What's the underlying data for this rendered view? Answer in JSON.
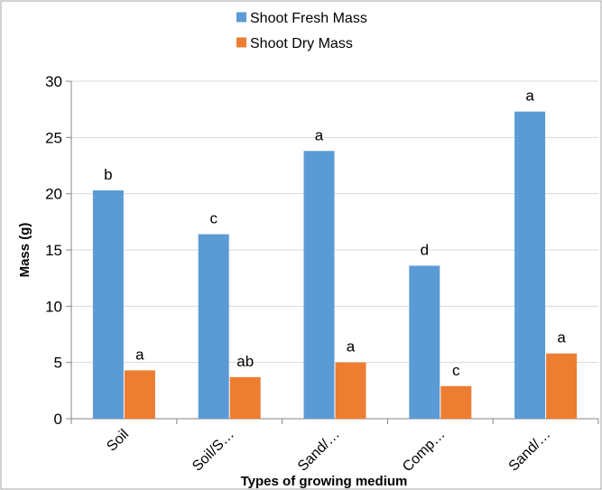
{
  "chart_data": {
    "type": "bar",
    "title": "",
    "xlabel": "Types of growing medium",
    "ylabel": "Mass (g)",
    "ylim": [
      0,
      30
    ],
    "yticks": [
      0,
      5,
      10,
      15,
      20,
      25,
      30
    ],
    "grid": true,
    "legend_position": "top",
    "categories": [
      "Soil",
      "Soil/S…",
      "Sand/…",
      "Comp…",
      "Sand/…"
    ],
    "series": [
      {
        "name": "Shoot Fresh Mass",
        "color": "#5B9BD5",
        "values": [
          20.3,
          16.4,
          23.8,
          13.6,
          27.3
        ],
        "labels": [
          "b",
          "c",
          "a",
          "d",
          "a"
        ]
      },
      {
        "name": "Shoot Dry Mass",
        "color": "#ED7D31",
        "values": [
          4.3,
          3.7,
          5.0,
          2.9,
          5.8
        ],
        "labels": [
          "a",
          "ab",
          "a",
          "c",
          "a"
        ]
      }
    ]
  }
}
